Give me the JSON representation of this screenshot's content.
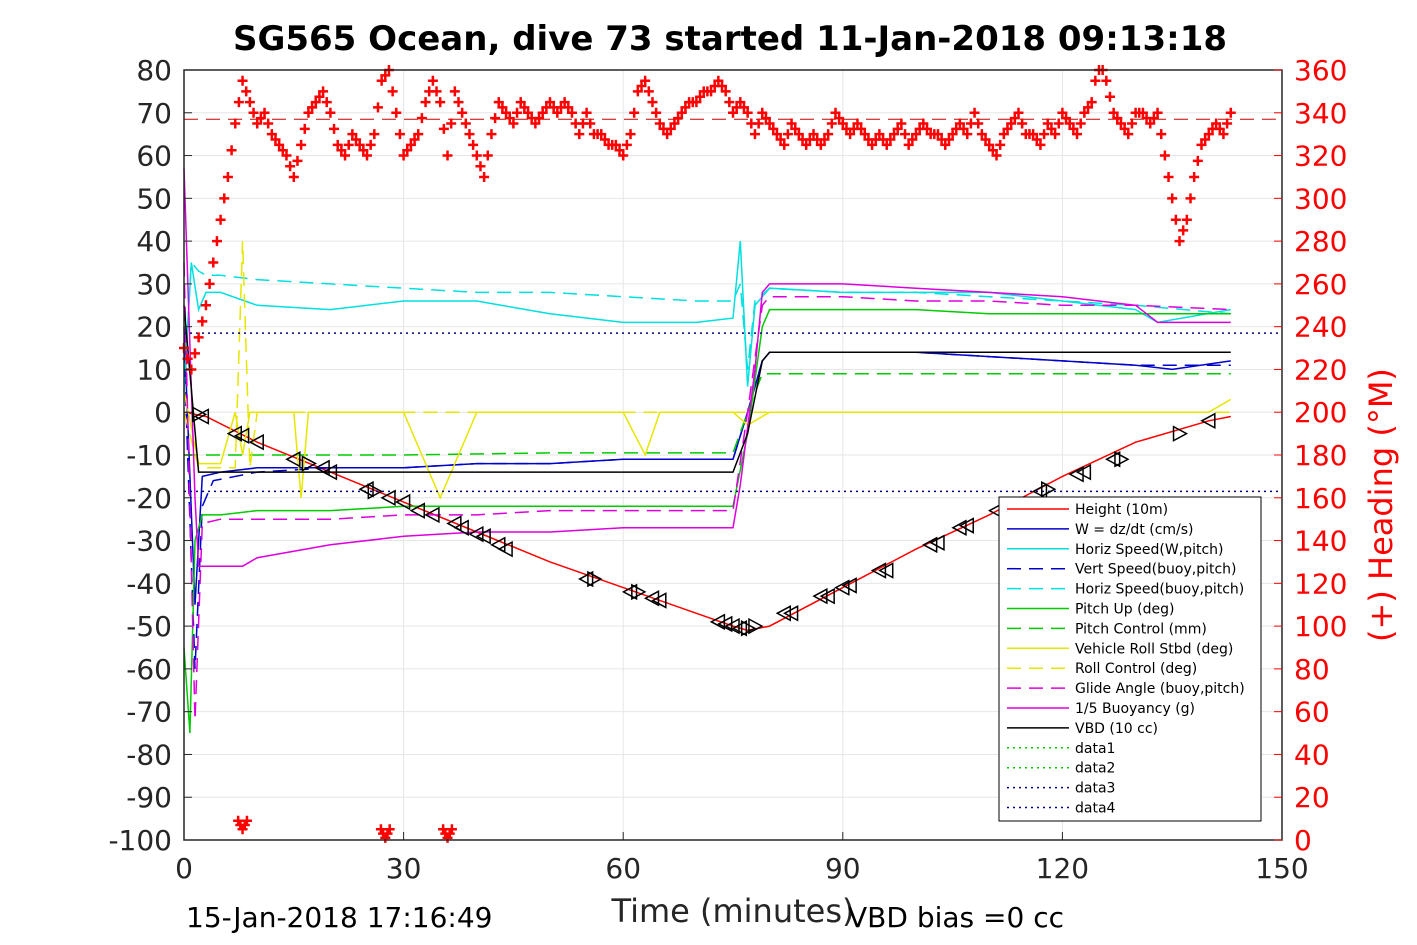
{
  "chart_data": {
    "type": "line",
    "title": "SG565 Ocean, dive 73 started 11-Jan-2018 09:13:18",
    "xlabel": "Time (minutes)",
    "ylabel_right": "(+) Heading (°M)",
    "footer_left": "15-Jan-2018 17:16:49",
    "footer_right": "VBD bias =0 cc",
    "xlim": [
      0,
      150
    ],
    "ylim_left": [
      -100,
      80
    ],
    "ylim_right": [
      0,
      360
    ],
    "x_ticks": [
      "0",
      "30",
      "60",
      "90",
      "120",
      "150"
    ],
    "x_tick_values": [
      0,
      30,
      60,
      90,
      120,
      150
    ],
    "y_ticks_left": [
      "80",
      "70",
      "60",
      "50",
      "40",
      "30",
      "20",
      "10",
      "0",
      "-10",
      "-20",
      "-30",
      "-40",
      "-50",
      "-60",
      "-70",
      "-80",
      "-90",
      "-100"
    ],
    "y_tick_values_left": [
      80,
      70,
      60,
      50,
      40,
      30,
      20,
      10,
      0,
      -10,
      -20,
      -30,
      -40,
      -50,
      -60,
      -70,
      -80,
      -90,
      -100
    ],
    "y_ticks_right": [
      "360",
      "340",
      "320",
      "300",
      "280",
      "260",
      "240",
      "220",
      "200",
      "180",
      "160",
      "140",
      "120",
      "100",
      "80",
      "60",
      "40",
      "20",
      "0"
    ],
    "y_tick_values_right": [
      360,
      340,
      320,
      300,
      280,
      260,
      240,
      220,
      200,
      180,
      160,
      140,
      120,
      100,
      80,
      60,
      40,
      20,
      0
    ],
    "grid": true,
    "legend_position": "bottom-right",
    "series": [
      {
        "name": "Height (10m)",
        "color": "#ff0000",
        "style": "solid",
        "x": [
          0,
          3,
          10,
          20,
          30,
          40,
          50,
          60,
          70,
          75,
          77,
          80,
          90,
          100,
          110,
          120,
          130,
          140,
          143
        ],
        "y": [
          0,
          -1,
          -7,
          -14,
          -21,
          -28,
          -35,
          -41,
          -47,
          -50,
          -51,
          -50,
          -41,
          -32,
          -24,
          -15,
          -7,
          -2,
          -1
        ]
      },
      {
        "name": "W = dz/dt (cm/s)",
        "color": "#0000cc",
        "style": "solid",
        "x": [
          0,
          1.5,
          2.5,
          5,
          10,
          20,
          30,
          40,
          50,
          60,
          70,
          75,
          77,
          79,
          80,
          90,
          100,
          110,
          120,
          130,
          135,
          143
        ],
        "y": [
          20,
          -45,
          -15,
          -14,
          -13,
          -13,
          -13,
          -12,
          -12,
          -11,
          -11,
          -11,
          0,
          12,
          14,
          14,
          14,
          13,
          12,
          11,
          10,
          12
        ]
      },
      {
        "name": "Horiz Speed(W,pitch)",
        "color": "#00e0e0",
        "style": "solid",
        "x": [
          0,
          1,
          2,
          3,
          5,
          10,
          20,
          30,
          40,
          50,
          60,
          70,
          75,
          76,
          77,
          78,
          80,
          90,
          100,
          110,
          120,
          130,
          133,
          143
        ],
        "y": [
          5,
          35,
          24,
          28,
          28,
          25,
          24,
          26,
          26,
          23,
          21,
          21,
          22,
          40,
          6,
          25,
          29,
          28,
          28,
          28,
          26,
          24,
          21,
          24
        ]
      },
      {
        "name": "Vert Speed(buoy,pitch)",
        "color": "#0000cc",
        "style": "dashed",
        "x": [
          0,
          1.5,
          2.5,
          4,
          10,
          20,
          30,
          40,
          50,
          60,
          70,
          75,
          77,
          79,
          80,
          90,
          100,
          110,
          120,
          130,
          143
        ],
        "y": [
          15,
          -60,
          -22,
          -16,
          -14,
          -13,
          -13,
          -12,
          -12,
          -11,
          -11,
          -11,
          0,
          12,
          14,
          14,
          14,
          13,
          12,
          11,
          11
        ]
      },
      {
        "name": "Horiz Speed(buoy,pitch)",
        "color": "#00e0e0",
        "style": "dashed",
        "x": [
          0,
          1,
          2,
          3,
          5,
          10,
          20,
          30,
          40,
          50,
          60,
          70,
          75,
          76,
          77,
          78,
          80,
          90,
          100,
          110,
          120,
          130,
          143
        ],
        "y": [
          5,
          35,
          33,
          32,
          32,
          31,
          30,
          29,
          28,
          28,
          27,
          26,
          26,
          30,
          10,
          26,
          29,
          28,
          28,
          27,
          26,
          25,
          23
        ]
      },
      {
        "name": "Pitch Up (deg)",
        "color": "#00cc00",
        "style": "solid",
        "x": [
          0,
          0.8,
          1.5,
          2.5,
          5,
          10,
          20,
          30,
          40,
          50,
          60,
          70,
          75,
          77,
          79,
          80,
          90,
          100,
          110,
          120,
          130,
          140,
          143
        ],
        "y": [
          -55,
          -75,
          -30,
          -24,
          -24,
          -23,
          -23,
          -22,
          -22,
          -22,
          -22,
          -22,
          -22,
          -5,
          20,
          24,
          24,
          24,
          23,
          23,
          23,
          23,
          23
        ]
      },
      {
        "name": "Pitch Control (mm)",
        "color": "#00cc00",
        "style": "dashed",
        "x": [
          0,
          1.5,
          2.5,
          10,
          30,
          50,
          70,
          75,
          77,
          79,
          80,
          100,
          120,
          143
        ],
        "y": [
          -10,
          -10,
          -10,
          -10,
          -10,
          -9.5,
          -9.5,
          -9.5,
          0,
          9,
          9,
          9,
          9,
          9
        ]
      },
      {
        "name": "Vehicle Roll Stbd (deg)",
        "color": "#e6e600",
        "style": "solid",
        "x": [
          0,
          2,
          5,
          7,
          8,
          9,
          10,
          15,
          16,
          17,
          20,
          25,
          30,
          35,
          40,
          45,
          50,
          55,
          60,
          63,
          65,
          70,
          75,
          77,
          80,
          85,
          90,
          95,
          100,
          105,
          110,
          115,
          120,
          125,
          130,
          135,
          140,
          143
        ],
        "y": [
          5,
          -12,
          -12,
          0,
          -10,
          0,
          0,
          0,
          -20,
          0,
          0,
          0,
          0,
          -20,
          0,
          0,
          0,
          0,
          0,
          -10,
          0,
          0,
          0,
          -3,
          0,
          0,
          0,
          0,
          0,
          0,
          0,
          0,
          0,
          0,
          0,
          0,
          0,
          3
        ]
      },
      {
        "name": "Roll Control (deg)",
        "color": "#e6e600",
        "style": "dashed",
        "x": [
          0,
          2,
          5,
          7,
          8,
          9,
          10,
          20,
          30,
          40,
          50,
          60,
          70,
          75,
          77,
          80,
          90,
          100,
          110,
          120,
          130,
          140,
          143
        ],
        "y": [
          0,
          -13,
          -13,
          -13,
          40,
          -13,
          0,
          0,
          0,
          0,
          0,
          0,
          0,
          0,
          0,
          0,
          0,
          0,
          0,
          0,
          0,
          0,
          0
        ]
      },
      {
        "name": "Glide Angle (buoy,pitch)",
        "color": "#dd00dd",
        "style": "dashed",
        "x": [
          0,
          1.5,
          2.5,
          5,
          10,
          20,
          30,
          40,
          50,
          60,
          70,
          75,
          77,
          79,
          80,
          90,
          100,
          110,
          120,
          130,
          143
        ],
        "y": [
          35,
          -72,
          -26,
          -25,
          -25,
          -25,
          -24,
          -24,
          -23,
          -23,
          -23,
          -23,
          0,
          25,
          27,
          27,
          26,
          26,
          25,
          25,
          24
        ]
      },
      {
        "name": "1/5 Buoyancy (g)",
        "color": "#dd00dd",
        "style": "solid",
        "x": [
          0,
          1.5,
          2,
          5,
          8,
          10,
          20,
          30,
          40,
          50,
          60,
          70,
          75,
          76,
          78,
          79,
          80,
          90,
          100,
          110,
          120,
          130,
          133,
          143
        ],
        "y": [
          57,
          -20,
          -36,
          -36,
          -36,
          -34,
          -31,
          -29,
          -28,
          -28,
          -27,
          -27,
          -27,
          -17,
          10,
          28,
          30,
          30,
          29,
          28,
          27,
          25,
          21,
          21
        ]
      },
      {
        "name": "VBD (10 cc)",
        "color": "#000000",
        "style": "solid",
        "x": [
          0,
          2,
          10,
          20,
          30,
          40,
          50,
          60,
          70,
          75,
          77,
          79,
          80,
          90,
          100,
          110,
          120,
          130,
          143
        ],
        "y": [
          25,
          -14,
          -14,
          -14,
          -14,
          -14,
          -14,
          -14,
          -14,
          -14,
          -5,
          12,
          14,
          14,
          14,
          14,
          14,
          14,
          14
        ]
      },
      {
        "name": "data1",
        "color": "#00cc00",
        "style": "dotted",
        "x": [],
        "y": []
      },
      {
        "name": "data2",
        "color": "#00cc00",
        "style": "dotted",
        "x": [],
        "y": []
      },
      {
        "name": "data3",
        "color": "#000080",
        "style": "dotted",
        "x": [
          0,
          150
        ],
        "y": [
          18.5,
          18.5
        ]
      },
      {
        "name": "data4",
        "color": "#000080",
        "style": "dotted",
        "x": [
          0,
          150
        ],
        "y": [
          -18.5,
          -18.5
        ]
      }
    ],
    "heading": {
      "name": "Heading",
      "color": "#ff0000",
      "marker": "+",
      "axis": "right",
      "mean_line": 337,
      "x": [
        0,
        1,
        2,
        3,
        4,
        5,
        6,
        7,
        8,
        9,
        10,
        11,
        12,
        13,
        14,
        15,
        16,
        17,
        18,
        19,
        20,
        21,
        22,
        23,
        24,
        25,
        26,
        27,
        28,
        29,
        30,
        31,
        32,
        33,
        34,
        35,
        36,
        37,
        38,
        39,
        40,
        41,
        42,
        43,
        44,
        45,
        46,
        47,
        48,
        49,
        50,
        51,
        52,
        53,
        54,
        55,
        56,
        57,
        58,
        59,
        60,
        61,
        62,
        63,
        64,
        65,
        66,
        67,
        68,
        69,
        70,
        71,
        72,
        73,
        74,
        75,
        76,
        77,
        78,
        79,
        80,
        81,
        82,
        83,
        84,
        85,
        86,
        87,
        88,
        89,
        90,
        91,
        92,
        93,
        94,
        95,
        96,
        97,
        98,
        99,
        100,
        101,
        102,
        103,
        104,
        105,
        106,
        107,
        108,
        109,
        110,
        111,
        112,
        113,
        114,
        115,
        116,
        117,
        118,
        119,
        120,
        121,
        122,
        123,
        124,
        125,
        126,
        127,
        128,
        129,
        130,
        131,
        132,
        133,
        134,
        135,
        136,
        137,
        138,
        139,
        140,
        141,
        142,
        143
      ],
      "y": [
        230,
        220,
        235,
        250,
        270,
        290,
        310,
        335,
        355,
        345,
        335,
        340,
        330,
        325,
        320,
        310,
        325,
        340,
        345,
        350,
        340,
        325,
        320,
        330,
        325,
        320,
        330,
        355,
        360,
        340,
        320,
        325,
        330,
        345,
        355,
        345,
        320,
        350,
        340,
        330,
        320,
        310,
        330,
        345,
        340,
        335,
        345,
        340,
        335,
        340,
        345,
        340,
        345,
        340,
        330,
        340,
        330,
        330,
        325,
        325,
        320,
        330,
        350,
        355,
        345,
        335,
        330,
        335,
        340,
        345,
        345,
        350,
        350,
        355,
        350,
        340,
        345,
        340,
        330,
        340,
        335,
        330,
        325,
        335,
        330,
        325,
        330,
        325,
        330,
        340,
        335,
        330,
        335,
        330,
        325,
        330,
        325,
        330,
        335,
        325,
        330,
        335,
        330,
        330,
        325,
        330,
        335,
        330,
        340,
        330,
        325,
        320,
        330,
        335,
        340,
        330,
        330,
        325,
        335,
        330,
        340,
        335,
        330,
        340,
        345,
        365,
        355,
        340,
        335,
        330,
        340,
        340,
        335,
        340,
        320,
        300,
        280,
        290,
        310,
        325,
        330,
        335,
        330,
        340
      ],
      "low_clusters_x": [
        8,
        27.5,
        36
      ],
      "low_clusters_y": [
        5,
        1,
        1
      ]
    },
    "triangle_markers": {
      "x": [
        2,
        2.5,
        7,
        8,
        10,
        15,
        17,
        19,
        20,
        25,
        26,
        28,
        30,
        32,
        34,
        37,
        38,
        40,
        41,
        43,
        44,
        55,
        56,
        61,
        62,
        64,
        65,
        73,
        74,
        75,
        76,
        77,
        78,
        82,
        83,
        87,
        88,
        90,
        91,
        95,
        96,
        102,
        103,
        106,
        107,
        111,
        113,
        117,
        118,
        122,
        123,
        127,
        128,
        136,
        140
      ],
      "y": [
        -0.5,
        -1,
        -5,
        -5.5,
        -7,
        -11,
        -12,
        -13,
        -14,
        -18,
        -18.5,
        -20,
        -21,
        -23,
        -24,
        -26,
        -27,
        -28.5,
        -29,
        -31,
        -32,
        -39,
        -39,
        -42,
        -42,
        -43.5,
        -44,
        -49,
        -49.5,
        -50,
        -50.5,
        -50.5,
        -50,
        -47,
        -47,
        -43,
        -43,
        -41,
        -40.5,
        -37,
        -37,
        -31,
        -30.5,
        -27,
        -26.5,
        -23,
        -22,
        -18.5,
        -18,
        -14.5,
        -14,
        -11,
        -11,
        -5,
        -2
      ],
      "directions": [
        "right",
        "left",
        "left",
        "left",
        "left",
        "left",
        "right",
        "left",
        "left",
        "left",
        "right",
        "left",
        "left",
        "left",
        "left",
        "left",
        "left",
        "left",
        "left",
        "left",
        "left",
        "left",
        "right",
        "left",
        "right",
        "left",
        "left",
        "left",
        "left",
        "left",
        "left",
        "right",
        "right",
        "left",
        "left",
        "left",
        "left",
        "left",
        "left",
        "left",
        "left",
        "left",
        "left",
        "left",
        "left",
        "left",
        "left",
        "left",
        "right",
        "left",
        "left",
        "left",
        "right",
        "right",
        "left"
      ]
    }
  }
}
